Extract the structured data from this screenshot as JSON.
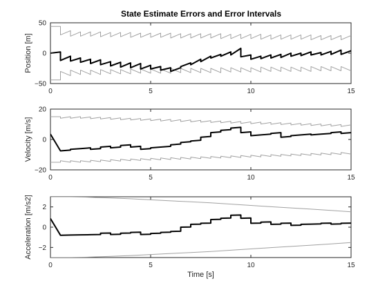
{
  "title": "State Estimate Errors and Error Intervals",
  "chart_data": [
    {
      "type": "line",
      "ylabel": "Position [m]",
      "xlabel": "",
      "xlim": [
        0,
        15
      ],
      "ylim": [
        -50,
        50
      ],
      "xticks": [
        0,
        5,
        10,
        15
      ],
      "yticks": [
        -50,
        0,
        50
      ],
      "error_color": "#000000",
      "bound_color": "#a0a0a0",
      "error": {
        "x": [
          0,
          0.5,
          0.5,
          1.0,
          1.0,
          1.5,
          1.5,
          2.0,
          2.0,
          2.5,
          2.5,
          3.0,
          3.0,
          3.5,
          3.5,
          4.0,
          4.0,
          4.5,
          4.5,
          5.0,
          5.0,
          5.5,
          5.5,
          6.0,
          6.0,
          6.5,
          6.5,
          7.0,
          7.0,
          7.5,
          7.5,
          8.0,
          8.0,
          8.5,
          8.5,
          9.0,
          9.0,
          9.5,
          9.5,
          10.0,
          10.0,
          10.5,
          10.5,
          11.0,
          11.0,
          11.5,
          11.5,
          12.0,
          12.0,
          12.5,
          12.5,
          13.0,
          13.0,
          13.5,
          13.5,
          14.0,
          14.0,
          14.5,
          14.5,
          15.0
        ],
        "y": [
          0,
          2,
          -12,
          -5,
          -13,
          -8,
          -15,
          -10,
          -17,
          -11,
          -19,
          -14,
          -21,
          -15,
          -23,
          -16,
          -24,
          -17,
          -26,
          -20,
          -26,
          -22,
          -28,
          -24,
          -30,
          -24,
          -22,
          -16,
          -19,
          -10,
          -14,
          -5,
          -8,
          -2,
          -5,
          2,
          -3,
          8,
          -6,
          -3,
          -10,
          -5,
          -9,
          -3,
          -8,
          -2,
          -7,
          0,
          -5,
          0,
          -4,
          2,
          -3,
          1,
          -3,
          3,
          -2,
          5,
          -2,
          4
        ]
      },
      "bound_upper": {
        "x": [
          0,
          0.5,
          0.5,
          1.0,
          1.0,
          1.5,
          1.5,
          2.0,
          2.0,
          2.5,
          2.5,
          3.0,
          3.0,
          3.5,
          3.5,
          4.0,
          4.0,
          4.5,
          4.5,
          5.0,
          5.0,
          5.5,
          5.5,
          6.0,
          6.0,
          6.5,
          6.5,
          7.0,
          7.0,
          7.5,
          7.5,
          8.0,
          8.0,
          8.5,
          8.5,
          9.0,
          9.0,
          9.5,
          9.5,
          10.0,
          10.0,
          10.5,
          10.5,
          11.0,
          11.0,
          11.5,
          11.5,
          12.0,
          12.0,
          12.5,
          12.5,
          13.0,
          13.0,
          13.5,
          13.5,
          14.0,
          14.0,
          14.5,
          14.5,
          15.0
        ],
        "y": [
          44,
          44,
          30,
          37,
          28,
          35,
          28,
          35,
          28,
          35,
          27,
          34,
          27,
          34,
          27,
          34,
          26,
          33,
          26,
          33,
          26,
          33,
          26,
          33,
          25,
          32,
          25,
          32,
          25,
          32,
          25,
          32,
          25,
          32,
          24,
          31,
          24,
          31,
          24,
          31,
          24,
          31,
          23,
          30,
          23,
          30,
          23,
          30,
          23,
          30,
          23,
          30,
          22,
          29,
          22,
          29,
          22,
          29,
          22,
          29
        ]
      },
      "bound_lower": {
        "x": [
          0,
          0.5,
          0.5,
          1.0,
          1.0,
          1.5,
          1.5,
          2.0,
          2.0,
          2.5,
          2.5,
          3.0,
          3.0,
          3.5,
          3.5,
          4.0,
          4.0,
          4.5,
          4.5,
          5.0,
          5.0,
          5.5,
          5.5,
          6.0,
          6.0,
          6.5,
          6.5,
          7.0,
          7.0,
          7.5,
          7.5,
          8.0,
          8.0,
          8.5,
          8.5,
          9.0,
          9.0,
          9.5,
          9.5,
          10.0,
          10.0,
          10.5,
          10.5,
          11.0,
          11.0,
          11.5,
          11.5,
          12.0,
          12.0,
          12.5,
          12.5,
          13.0,
          13.0,
          13.5,
          13.5,
          14.0,
          14.0,
          14.5,
          14.5,
          15.0
        ],
        "y": [
          -44,
          -44,
          -30,
          -37,
          -28,
          -35,
          -28,
          -35,
          -28,
          -35,
          -27,
          -34,
          -27,
          -34,
          -27,
          -34,
          -26,
          -33,
          -26,
          -33,
          -26,
          -33,
          -26,
          -33,
          -25,
          -32,
          -25,
          -32,
          -25,
          -32,
          -25,
          -32,
          -25,
          -32,
          -24,
          -31,
          -24,
          -31,
          -24,
          -31,
          -24,
          -31,
          -23,
          -30,
          -23,
          -30,
          -23,
          -30,
          -23,
          -30,
          -23,
          -30,
          -22,
          -29,
          -22,
          -29,
          -22,
          -29,
          -22,
          -29
        ]
      }
    },
    {
      "type": "line",
      "ylabel": "Velocity [m/s]",
      "xlabel": "",
      "xlim": [
        0,
        15
      ],
      "ylim": [
        -20,
        20
      ],
      "xticks": [
        0,
        5,
        10,
        15
      ],
      "yticks": [
        -20,
        0,
        20
      ],
      "error_color": "#000000",
      "bound_color": "#a0a0a0",
      "error": {
        "x": [
          0,
          0.5,
          0.5,
          1.0,
          1.0,
          1.5,
          1.5,
          2.0,
          2.0,
          2.5,
          2.5,
          3.0,
          3.0,
          3.5,
          3.5,
          4.0,
          4.0,
          4.5,
          4.5,
          5.0,
          5.0,
          5.5,
          5.5,
          6.0,
          6.0,
          6.5,
          6.5,
          7.0,
          7.0,
          7.5,
          7.5,
          8.0,
          8.0,
          8.5,
          8.5,
          9.0,
          9.0,
          9.5,
          9.5,
          10.0,
          10.0,
          10.5,
          10.5,
          11.0,
          11.0,
          11.5,
          11.5,
          12.0,
          12.0,
          12.5,
          12.5,
          13.0,
          13.0,
          13.5,
          13.5,
          14.0,
          14.0,
          14.5,
          14.5,
          15.0
        ],
        "y": [
          3.5,
          -7.5,
          -7.5,
          -7,
          -6.5,
          -6,
          -6,
          -5.5,
          -6.5,
          -6,
          -5,
          -4.5,
          -5.5,
          -5,
          -4,
          -3.5,
          -5,
          -4.5,
          -6.5,
          -6,
          -5.5,
          -5,
          -5,
          -4.5,
          -3.5,
          -3,
          -2,
          -1.5,
          -1,
          -0.5,
          1.5,
          2,
          4.5,
          5,
          6,
          6.5,
          7.5,
          8,
          4.5,
          5,
          2.5,
          3,
          3,
          3.5,
          4,
          4.5,
          1.5,
          2,
          2.5,
          3,
          3,
          3.5,
          3,
          3.5,
          3.5,
          4,
          4.5,
          5,
          4,
          4.5
        ]
      },
      "bound_upper": {
        "x": [
          0,
          0.5,
          0.5,
          1.0,
          1.0,
          1.5,
          1.5,
          2.0,
          2.0,
          2.5,
          2.5,
          3.0,
          3.0,
          3.5,
          3.5,
          4.0,
          4.0,
          4.5,
          4.5,
          5.0,
          5.0,
          5.5,
          5.5,
          6.0,
          6.0,
          6.5,
          6.5,
          7.0,
          7.0,
          7.5,
          7.5,
          8.0,
          8.0,
          8.5,
          8.5,
          9.0,
          9.0,
          9.5,
          9.5,
          10.0,
          10.0,
          10.5,
          10.5,
          11.0,
          11.0,
          11.5,
          11.5,
          12.0,
          12.0,
          12.5,
          12.5,
          13.0,
          13.0,
          13.5,
          13.5,
          14.0,
          14.0,
          14.5,
          14.5,
          15.0
        ],
        "y": [
          15,
          15,
          14,
          15,
          14,
          15,
          14,
          14.8,
          13.7,
          14.6,
          13.5,
          14.4,
          13.3,
          14.2,
          13,
          14,
          12.8,
          13.8,
          12.6,
          13.6,
          12.4,
          13.4,
          12.2,
          13.2,
          12,
          13,
          11.8,
          12.8,
          11.6,
          12.6,
          11.4,
          12.4,
          11.2,
          12.2,
          11,
          12,
          10.8,
          11.8,
          10.6,
          11.6,
          10.4,
          11.4,
          10.2,
          11.2,
          10,
          11,
          9.8,
          10.8,
          9.6,
          10.6,
          9.4,
          10.4,
          9.2,
          10.2,
          9,
          10,
          8.8,
          9.8,
          8.6,
          9.6
        ]
      },
      "bound_lower": {
        "x": [
          0,
          0.5,
          0.5,
          1.0,
          1.0,
          1.5,
          1.5,
          2.0,
          2.0,
          2.5,
          2.5,
          3.0,
          3.0,
          3.5,
          3.5,
          4.0,
          4.0,
          4.5,
          4.5,
          5.0,
          5.0,
          5.5,
          5.5,
          6.0,
          6.0,
          6.5,
          6.5,
          7.0,
          7.0,
          7.5,
          7.5,
          8.0,
          8.0,
          8.5,
          8.5,
          9.0,
          9.0,
          9.5,
          9.5,
          10.0,
          10.0,
          10.5,
          10.5,
          11.0,
          11.0,
          11.5,
          11.5,
          12.0,
          12.0,
          12.5,
          12.5,
          13.0,
          13.0,
          13.5,
          13.5,
          14.0,
          14.0,
          14.5,
          14.5,
          15.0
        ],
        "y": [
          -15,
          -15,
          -14,
          -15,
          -14,
          -15,
          -14,
          -14.8,
          -13.7,
          -14.6,
          -13.5,
          -14.4,
          -13.3,
          -14.2,
          -13,
          -14,
          -12.8,
          -13.8,
          -12.6,
          -13.6,
          -12.4,
          -13.4,
          -12.2,
          -13.2,
          -12,
          -13,
          -11.8,
          -12.8,
          -11.6,
          -12.6,
          -11.4,
          -12.4,
          -11.2,
          -12.2,
          -11,
          -12,
          -10.8,
          -11.8,
          -10.6,
          -11.6,
          -10.4,
          -11.4,
          -10.2,
          -11.2,
          -10,
          -11,
          -9.8,
          -10.8,
          -9.6,
          -10.6,
          -9.4,
          -10.4,
          -9.2,
          -10.2,
          -9,
          -10,
          -8.8,
          -9.8,
          -8.6,
          -9.6
        ]
      }
    },
    {
      "type": "line",
      "ylabel": "Acceleration [m/s2]",
      "xlabel": "Time [s]",
      "xlim": [
        0,
        15
      ],
      "ylim": [
        -3,
        3
      ],
      "xticks": [
        0,
        5,
        10,
        15
      ],
      "yticks": [
        -2,
        0,
        2
      ],
      "error_color": "#000000",
      "bound_color": "#a0a0a0",
      "error": {
        "x": [
          0,
          0.5,
          0.5,
          1.0,
          1.0,
          1.5,
          1.5,
          2.0,
          2.0,
          2.5,
          2.5,
          3.0,
          3.0,
          3.5,
          3.5,
          4.0,
          4.0,
          4.5,
          4.5,
          5.0,
          5.0,
          5.5,
          5.5,
          6.0,
          6.0,
          6.5,
          6.5,
          7.0,
          7.0,
          7.5,
          7.5,
          8.0,
          8.0,
          8.5,
          8.5,
          9.0,
          9.0,
          9.5,
          9.5,
          10.0,
          10.0,
          10.5,
          10.5,
          11.0,
          11.0,
          11.5,
          11.5,
          12.0,
          12.0,
          12.5,
          12.5,
          13.0,
          13.0,
          13.5,
          13.5,
          14.0,
          14.0,
          14.5,
          14.5,
          15.0
        ],
        "y": [
          0.85,
          -0.8,
          -0.8,
          -0.78,
          -0.78,
          -0.76,
          -0.76,
          -0.74,
          -0.74,
          -0.72,
          -0.6,
          -0.58,
          -0.72,
          -0.7,
          -0.6,
          -0.58,
          -0.52,
          -0.5,
          -0.72,
          -0.7,
          -0.62,
          -0.6,
          -0.52,
          -0.5,
          -0.42,
          -0.4,
          0.0,
          0.02,
          0.28,
          0.3,
          0.38,
          0.4,
          0.75,
          0.78,
          0.88,
          0.9,
          1.18,
          1.2,
          0.88,
          0.9,
          0.38,
          0.4,
          0.5,
          0.52,
          0.28,
          0.3,
          0.38,
          0.4,
          0.18,
          0.2,
          0.28,
          0.3,
          0.3,
          0.32,
          0.38,
          0.4,
          0.3,
          0.32,
          0.38,
          0.4
        ]
      },
      "bound_upper": {
        "x": [
          0,
          1,
          2,
          3,
          4,
          5,
          6,
          7,
          8,
          9,
          10,
          11,
          12,
          13,
          14,
          15
        ],
        "y": [
          3.0,
          3.0,
          2.95,
          2.88,
          2.8,
          2.7,
          2.6,
          2.5,
          2.4,
          2.28,
          2.15,
          2.02,
          1.9,
          1.78,
          1.65,
          1.52
        ]
      },
      "bound_lower": {
        "x": [
          0,
          1,
          2,
          3,
          4,
          5,
          6,
          7,
          8,
          9,
          10,
          11,
          12,
          13,
          14,
          15
        ],
        "y": [
          -3.0,
          -3.0,
          -2.95,
          -2.88,
          -2.8,
          -2.7,
          -2.6,
          -2.5,
          -2.4,
          -2.28,
          -2.15,
          -2.02,
          -1.9,
          -1.78,
          -1.65,
          -1.52
        ]
      }
    }
  ]
}
